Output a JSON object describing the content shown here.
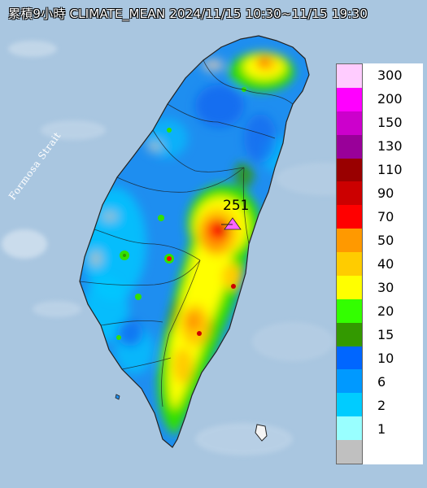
{
  "title": "累積9小時 CLIMATE_MEAN 2024/11/15 10:30~11/15 19:30",
  "sea_label": "Formosa Strait",
  "max_station_value": "251",
  "legend": {
    "levels": [
      {
        "label": "300",
        "color": "#ffccff"
      },
      {
        "label": "200",
        "color": "#ff00ff"
      },
      {
        "label": "150",
        "color": "#cc00cc"
      },
      {
        "label": "130",
        "color": "#990099"
      },
      {
        "label": "110",
        "color": "#990000"
      },
      {
        "label": "90",
        "color": "#cc0000"
      },
      {
        "label": "70",
        "color": "#ff0000"
      },
      {
        "label": "50",
        "color": "#ff9900"
      },
      {
        "label": "40",
        "color": "#ffcc00"
      },
      {
        "label": "30",
        "color": "#ffff00"
      },
      {
        "label": "20",
        "color": "#33ff00"
      },
      {
        "label": "15",
        "color": "#339900"
      },
      {
        "label": "10",
        "color": "#0066ff"
      },
      {
        "label": "6",
        "color": "#0099ff"
      },
      {
        "label": "2",
        "color": "#00ccff"
      },
      {
        "label": "1",
        "color": "#99ffff"
      },
      {
        "label": "",
        "color": "#c0c0c0"
      }
    ]
  },
  "colors": {
    "sea": "#a9c6e0",
    "land_base": "#1e8ef0"
  }
}
